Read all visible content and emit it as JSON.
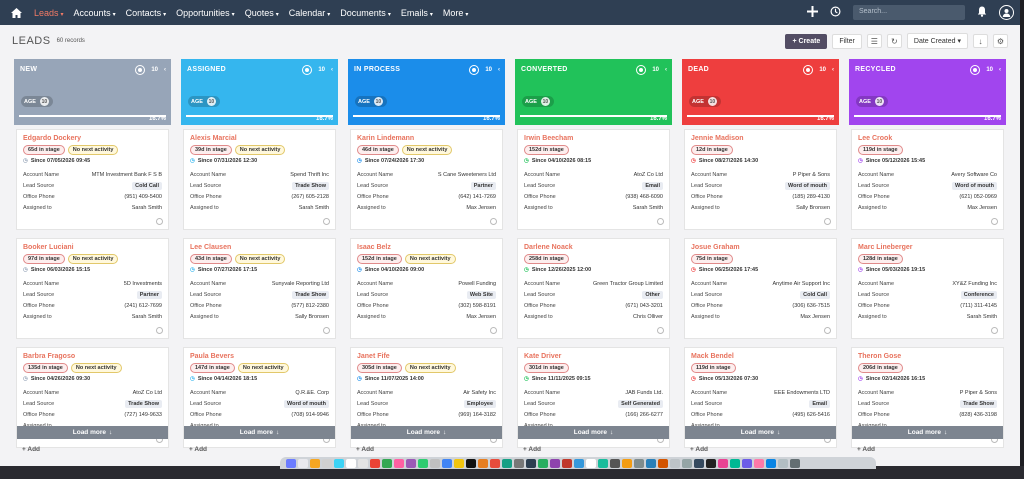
{
  "nav": {
    "items": [
      {
        "label": "Leads",
        "active": true
      },
      {
        "label": "Accounts"
      },
      {
        "label": "Contacts"
      },
      {
        "label": "Opportunities"
      },
      {
        "label": "Quotes"
      },
      {
        "label": "Calendar"
      },
      {
        "label": "Documents"
      },
      {
        "label": "Emails"
      },
      {
        "label": "More"
      }
    ],
    "search_placeholder": "Search..."
  },
  "page": {
    "title": "LEADS",
    "records": "60 records",
    "create": "Create",
    "filter": "Filter",
    "sort": "Date Created"
  },
  "labels": {
    "account_name": "Account Name",
    "lead_source": "Lead Source",
    "office_phone": "Office Phone",
    "assigned_to": "Assigned to",
    "age": "AGE",
    "load_more": "Load more",
    "add": "Add"
  },
  "columns": [
    {
      "name": "NEW",
      "color": "#97a5b8",
      "count": "10",
      "age": "10",
      "pct": "16.7%",
      "cards": [
        {
          "name": "Edgardo Dockery",
          "stage": "65d in stage",
          "activity": "No next activity",
          "since": "Since 07/05/2026 09:45",
          "account": "MTM Investment Bank F S B",
          "source": "Cold Call",
          "phone": "(951) 409-5400",
          "assigned": "Sarah Smith"
        },
        {
          "name": "Booker Luciani",
          "stage": "97d in stage",
          "activity": "No next activity",
          "since": "Since 06/03/2026 15:15",
          "account": "5D Investments",
          "source": "Partner",
          "phone": "(241) 612-7699",
          "assigned": "Sarah Smith"
        },
        {
          "name": "Barbra Fragoso",
          "stage": "135d in stage",
          "activity": "No next activity",
          "since": "Since 04/26/2026 09:30",
          "account": "AtoZ Co Ltd",
          "source": "Trade Show",
          "phone": "(727) 149-9633",
          "assigned": ""
        }
      ]
    },
    {
      "name": "ASSIGNED",
      "color": "#35b6ee",
      "count": "10",
      "age": "10",
      "pct": "16.7%",
      "cards": [
        {
          "name": "Alexis Marcial",
          "stage": "39d in stage",
          "activity": "No next activity",
          "since": "Since 07/31/2026 12:30",
          "account": "Spend Thrift Inc",
          "source": "Trade Show",
          "phone": "(267) 605-2128",
          "assigned": "Sarah Smith"
        },
        {
          "name": "Lee Clausen",
          "stage": "43d in stage",
          "activity": "No next activity",
          "since": "Since 07/27/2026 17:15",
          "account": "Sunyvale Reporting Ltd",
          "source": "Trade Show",
          "phone": "(577) 812-2380",
          "assigned": "Sally Bronsen"
        },
        {
          "name": "Paula Bevers",
          "stage": "147d in stage",
          "activity": "No next activity",
          "since": "Since 04/14/2026 18:15",
          "account": "Q.R.&E. Corp",
          "source": "Word of mouth",
          "phone": "(708) 914-9946",
          "assigned": ""
        }
      ]
    },
    {
      "name": "IN PROCESS",
      "color": "#1b8dea",
      "count": "10",
      "age": "10",
      "pct": "16.7%",
      "cards": [
        {
          "name": "Karin Lindemann",
          "stage": "46d in stage",
          "activity": "No next activity",
          "since": "Since 07/24/2026 17:30",
          "account": "S Cane Sweeteners Ltd",
          "source": "Partner",
          "phone": "(642) 141-7269",
          "assigned": "Max Jensen"
        },
        {
          "name": "Isaac Belz",
          "stage": "152d in stage",
          "activity": "No next activity",
          "since": "Since 04/10/2026 09:00",
          "account": "Powell Funding",
          "source": "Web Site",
          "phone": "(302) 598-8191",
          "assigned": "Max Jensen"
        },
        {
          "name": "Janet Fife",
          "stage": "305d in stage",
          "activity": "No next activity",
          "since": "Since 11/07/2025 14:00",
          "account": "Air Safety Inc",
          "source": "Employee",
          "phone": "(969) 164-3182",
          "assigned": ""
        }
      ]
    },
    {
      "name": "CONVERTED",
      "color": "#21c25a",
      "count": "10",
      "age": "10",
      "pct": "16.7%",
      "cards": [
        {
          "name": "Irwin Beecham",
          "stage": "152d in stage",
          "activity": "",
          "since": "Since 04/10/2026 08:15",
          "account": "AtoZ Co Ltd",
          "source": "Email",
          "phone": "(938) 468-6090",
          "assigned": "Sarah Smith"
        },
        {
          "name": "Darlene Noack",
          "stage": "258d in stage",
          "activity": "",
          "since": "Since 12/26/2025 12:00",
          "account": "Green Tractor Group Limited",
          "source": "Other",
          "phone": "(671) 043-3201",
          "assigned": "Chris Olliver"
        },
        {
          "name": "Kate Driver",
          "stage": "301d in stage",
          "activity": "",
          "since": "Since 11/11/2025 09:15",
          "account": "JAB Funds Ltd.",
          "source": "Self Generated",
          "phone": "(166) 266-6277",
          "assigned": ""
        }
      ]
    },
    {
      "name": "DEAD",
      "color": "#ee3e3e",
      "count": "10",
      "age": "10",
      "pct": "16.7%",
      "cards": [
        {
          "name": "Jennie Madison",
          "stage": "12d in stage",
          "activity": "",
          "since": "Since 08/27/2026 14:30",
          "account": "P Piper & Sons",
          "source": "Word of mouth",
          "phone": "(185) 289-4130",
          "assigned": "Sally Bronsen"
        },
        {
          "name": "Josue Graham",
          "stage": "75d in stage",
          "activity": "",
          "since": "Since 06/25/2026 17:45",
          "account": "Anytime Air Support Inc",
          "source": "Cold Call",
          "phone": "(306) 636-7515",
          "assigned": "Max Jensen"
        },
        {
          "name": "Mack Bendel",
          "stage": "119d in stage",
          "activity": "",
          "since": "Since 05/13/2026 07:30",
          "account": "EEE Endowments LTD",
          "source": "Email",
          "phone": "(495) 626-5416",
          "assigned": ""
        }
      ]
    },
    {
      "name": "RECYCLED",
      "color": "#a145ee",
      "count": "10",
      "age": "10",
      "pct": "16.7%",
      "cards": [
        {
          "name": "Lee Crook",
          "stage": "119d in stage",
          "activity": "",
          "since": "Since 05/12/2026 15:45",
          "account": "Avery Software Co",
          "source": "Word of mouth",
          "phone": "(621) 052-0969",
          "assigned": "Max Jensen"
        },
        {
          "name": "Marc Lineberger",
          "stage": "128d in stage",
          "activity": "",
          "since": "Since 05/03/2026 19:15",
          "account": "XY&Z Funding Inc",
          "source": "Conference",
          "phone": "(711) 311-4145",
          "assigned": "Sarah Smith"
        },
        {
          "name": "Theron Gose",
          "stage": "206d in stage",
          "activity": "",
          "since": "Since 02/14/2026 16:15",
          "account": "P Piper & Sons",
          "source": "Trade Show",
          "phone": "(828) 436-3198",
          "assigned": ""
        }
      ]
    }
  ],
  "dock_colors": [
    "#6b7cff",
    "#e9e9ee",
    "#f5a623",
    "#d0d0d0",
    "#3dd3f5",
    "#ffffff",
    "#e4e4e4",
    "#ea4335",
    "#34a853",
    "#ff5fa2",
    "#9b59b6",
    "#2ecc71",
    "#c0c0c0",
    "#4285f4",
    "#f1c40f",
    "#111111",
    "#e67e22",
    "#e74c3c",
    "#16a085",
    "#777777",
    "#2c3e50",
    "#27ae60",
    "#8e44ad",
    "#c0392b",
    "#3498db",
    "#ffffff",
    "#1abc9c",
    "#555555",
    "#f39c12",
    "#7f8c8d",
    "#2980b9",
    "#d35400",
    "#bdc3c7",
    "#95a5a6",
    "#34495e",
    "#222222",
    "#e84393",
    "#00b894",
    "#6c5ce7",
    "#fd79a8",
    "#0984e3",
    "#b2bec3",
    "#636e72"
  ]
}
